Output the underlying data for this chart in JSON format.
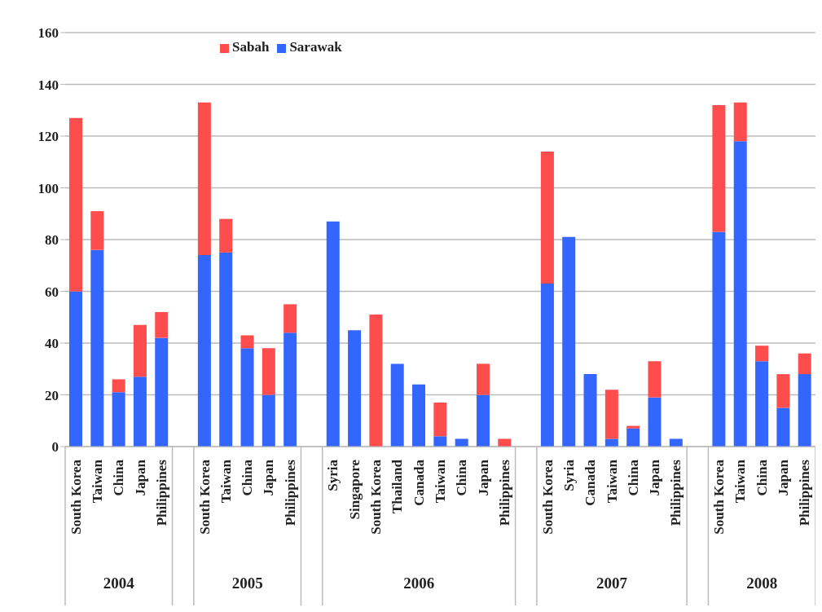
{
  "chart_data": {
    "type": "bar",
    "stacked": true,
    "categories": [
      "South Korea",
      "Taiwan",
      "China",
      "Japan",
      "Philippines",
      null,
      "South Korea",
      "Taiwan",
      "China",
      "Japan",
      "Philippines",
      null,
      "Syria",
      "Singapore",
      "South Korea",
      "Thailand",
      "Canada",
      "Taiwan",
      "China",
      "Japan",
      "Philippines",
      null,
      "South Korea",
      "Syria",
      "Canada",
      "Taiwan",
      "China",
      "Japan",
      "Philippines",
      null,
      "South Korea",
      "Taiwan",
      "China",
      "Japan",
      "Philippines"
    ],
    "series": [
      {
        "name": "Sarawak",
        "color": "#3366ff",
        "values": [
          60,
          76,
          21,
          27,
          42,
          null,
          74,
          75,
          38,
          20,
          44,
          null,
          87,
          45,
          0,
          32,
          24,
          4,
          3,
          20,
          0,
          null,
          63,
          81,
          28,
          3,
          7,
          19,
          3,
          null,
          83,
          118,
          33,
          15,
          28
        ]
      },
      {
        "name": "Sabah",
        "color": "#ff4d4d",
        "values": [
          67,
          15,
          5,
          20,
          10,
          null,
          59,
          13,
          5,
          18,
          11,
          null,
          0,
          0,
          51,
          0,
          0,
          13,
          0,
          12,
          3,
          null,
          51,
          0,
          0,
          19,
          1,
          14,
          0,
          null,
          49,
          15,
          6,
          13,
          8
        ]
      }
    ],
    "annotations": [
      "2004",
      "2005",
      "2006",
      "2007",
      "2008"
    ],
    "ylim": [
      0,
      160
    ],
    "yticks": [
      0,
      20,
      40,
      60,
      80,
      100,
      120,
      140,
      160
    ],
    "grid": "y",
    "legend": "top"
  }
}
